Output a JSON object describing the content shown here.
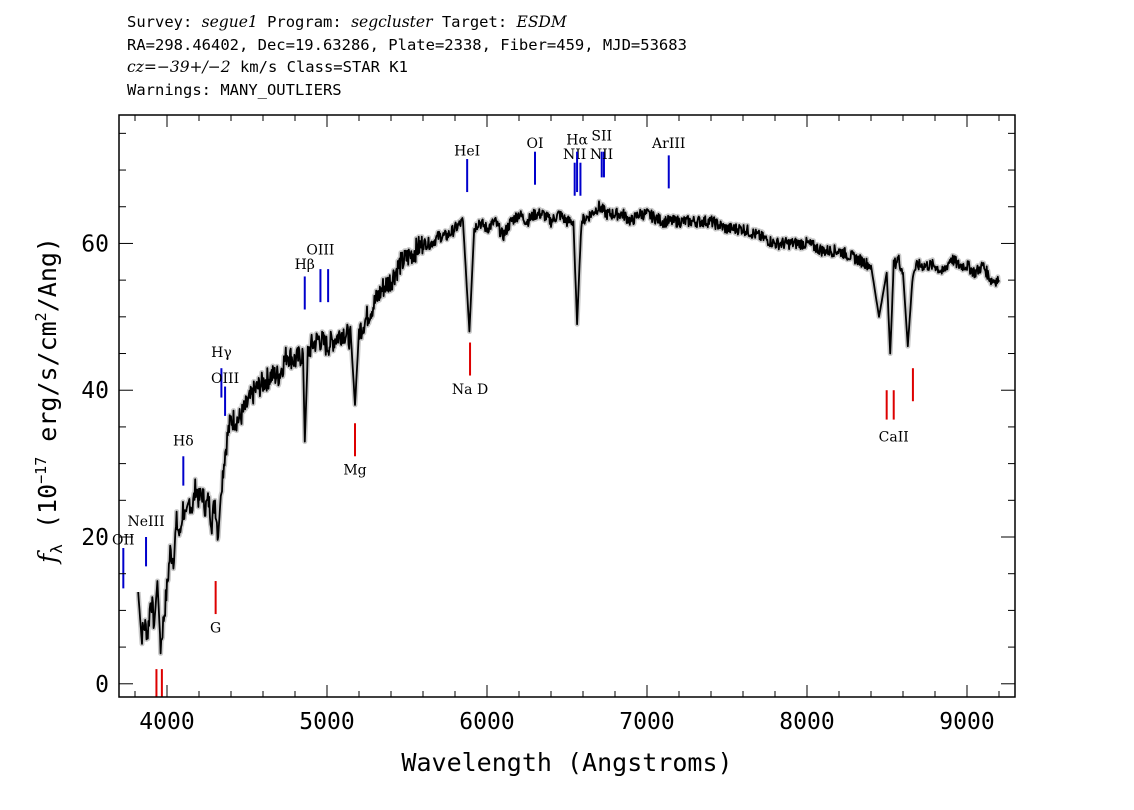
{
  "header": {
    "line1": {
      "survey_label": "Survey: ",
      "survey": "segue1",
      "program_label": " Program: ",
      "program": "segcluster",
      "target_label": " Target: ",
      "target": "ESDM"
    },
    "line2": "RA=298.46402, Dec=19.63286, Plate=2338, Fiber=459, MJD=53683",
    "line3": {
      "cz": "cz=",
      "value": "−39+/−2",
      "rest": " km/s Class=STAR K1"
    },
    "line4": "Warnings: MANY_OUTLIERS"
  },
  "chart_data": {
    "type": "line",
    "title": "",
    "xlabel": "Wavelength (Angstroms)",
    "ylabel": "f_λ (10^-17 erg/s/cm^2/Ang)",
    "ylabel_parts": {
      "f": "f",
      "sub": "λ",
      "a": "(10",
      "sup1": "−17",
      "b": " erg/s/cm",
      "sup2": "2",
      "c": "/Ang)"
    },
    "xlim": [
      3700,
      9300
    ],
    "ylim": [
      -1.8,
      77.5
    ],
    "x_ticks": [
      4000,
      5000,
      6000,
      7000,
      8000,
      9000
    ],
    "x_tick_labels": [
      "4000",
      "5000",
      "6000",
      "7000",
      "8000",
      "9000"
    ],
    "y_ticks": [
      0,
      20,
      40,
      60
    ],
    "y_tick_labels": [
      "0",
      "20",
      "40",
      "60"
    ],
    "series": [
      {
        "x": [
          3820,
          3840,
          3860,
          3880,
          3900,
          3920,
          3940,
          3960,
          3980,
          4000,
          4020,
          4040,
          4060,
          4080,
          4100,
          4120,
          4140,
          4160,
          4180,
          4200,
          4220,
          4240,
          4260,
          4280,
          4300,
          4320,
          4340,
          4360,
          4380,
          4400,
          4450,
          4500,
          4550,
          4600,
          4650,
          4700,
          4750,
          4800,
          4850,
          4861,
          4880,
          4900,
          4950,
          5000,
          5050,
          5100,
          5150,
          5175,
          5200,
          5250,
          5300,
          5350,
          5400,
          5450,
          5500,
          5550,
          5600,
          5650,
          5700,
          5750,
          5800,
          5850,
          5890,
          5920,
          5950,
          6000,
          6050,
          6100,
          6150,
          6200,
          6250,
          6300,
          6350,
          6400,
          6450,
          6500,
          6540,
          6563,
          6590,
          6650,
          6700,
          6750,
          6800,
          6850,
          6900,
          6950,
          7000,
          7100,
          7200,
          7300,
          7400,
          7500,
          7600,
          7700,
          7800,
          7900,
          8000,
          8100,
          8200,
          8300,
          8400,
          8450,
          8498,
          8520,
          8542,
          8570,
          8600,
          8630,
          8662,
          8690,
          8750,
          8800,
          8850,
          8900,
          8950,
          9000,
          9050,
          9100,
          9150,
          9200
        ],
        "y": [
          12.5,
          6.5,
          8,
          7,
          12,
          8,
          14,
          5,
          9,
          13,
          18,
          17,
          22,
          20,
          24,
          22,
          25,
          24,
          27,
          25,
          26,
          24,
          25,
          22,
          25,
          20,
          27,
          31,
          34,
          36,
          36,
          38,
          40,
          41,
          42,
          42,
          45,
          44,
          45,
          33,
          45,
          46,
          47,
          46,
          47,
          48,
          47,
          38,
          48,
          50,
          52,
          54,
          55,
          57,
          58,
          59,
          60,
          60,
          61,
          61,
          62,
          63,
          48,
          62,
          63,
          62,
          63,
          61,
          63,
          64,
          63,
          64,
          64,
          63,
          64,
          63,
          63,
          49,
          63,
          64,
          65,
          64,
          64,
          64,
          63,
          64,
          64,
          63,
          63,
          63,
          63,
          62,
          62,
          61,
          60,
          60,
          60,
          59,
          59,
          58,
          57,
          50,
          56,
          45,
          57,
          58,
          56,
          46,
          56,
          57,
          57,
          57,
          56,
          58,
          57,
          57,
          56,
          57,
          55,
          55
        ]
      }
    ],
    "line_markers": [
      {
        "label": "OII",
        "lambda": 3727,
        "kind": "emission",
        "color": "#0000cc",
        "y1": 13,
        "y2": 18.5,
        "label_y": 19
      },
      {
        "label": "NeIII",
        "lambda": 3869,
        "kind": "emission",
        "color": "#0000cc",
        "y1": 16,
        "y2": 20,
        "label_y": 21.5
      },
      {
        "label": "Hδ",
        "lambda": 4102,
        "kind": "emission",
        "color": "#0000cc",
        "y1": 27,
        "y2": 31,
        "label_y": 32.5
      },
      {
        "label": "Hγ",
        "lambda": 4340,
        "kind": "emission",
        "color": "#0000cc",
        "y1": 39,
        "y2": 43,
        "label_y": 44.5
      },
      {
        "label": "OIII",
        "lambda": 4363,
        "kind": "emission",
        "color": "#0000cc",
        "y1": 36.5,
        "y2": 40.5,
        "label_y": 41
      },
      {
        "label": "Hβ",
        "lambda": 4861,
        "kind": "emission",
        "color": "#0000cc",
        "y1": 51,
        "y2": 55.5,
        "label_y": 56.5
      },
      {
        "label": "OIII",
        "lambda": 4959,
        "kind": "emission",
        "color": "#0000cc",
        "y1": 52,
        "y2": 56.5,
        "label_y": 58.5
      },
      {
        "label": "",
        "lambda": 5007,
        "kind": "emission",
        "color": "#0000cc",
        "y1": 52,
        "y2": 56.5
      },
      {
        "label": "HeI",
        "lambda": 5876,
        "kind": "emission",
        "color": "#0000cc",
        "y1": 67,
        "y2": 71.5,
        "label_y": 72
      },
      {
        "label": "OI",
        "lambda": 6300,
        "kind": "emission",
        "color": "#0000cc",
        "y1": 68,
        "y2": 72.5,
        "label_y": 73
      },
      {
        "label": "NII",
        "lambda": 6548,
        "kind": "emission",
        "color": "#0000cc",
        "y1": 66.5,
        "y2": 71,
        "label_y": 71.5
      },
      {
        "label": "Hα",
        "lambda": 6563,
        "kind": "emission",
        "color": "#0000cc",
        "y1": 67,
        "y2": 72.5,
        "label_y": 73.5
      },
      {
        "label": "",
        "lambda": 6584,
        "kind": "emission",
        "color": "#0000cc",
        "y1": 66.5,
        "y2": 71
      },
      {
        "label": "SII",
        "lambda": 6717,
        "kind": "emission",
        "color": "#0000cc",
        "y1": 69,
        "y2": 72.5,
        "label_y": 74
      },
      {
        "label": "",
        "lambda": 6731,
        "kind": "emission",
        "color": "#0000cc",
        "y1": 69,
        "y2": 72.5
      },
      {
        "label": "NII",
        "lambda": 6716,
        "kind": "emission_label",
        "label_y": 71.5
      },
      {
        "label": "ArIII",
        "lambda": 7136,
        "kind": "emission",
        "color": "#0000cc",
        "y1": 67.5,
        "y2": 72,
        "label_y": 73
      },
      {
        "label": "",
        "lambda": 3934,
        "kind": "absorption",
        "color": "#dd0000",
        "y1": -1.8,
        "y2": 2
      },
      {
        "label": "",
        "lambda": 3968,
        "kind": "absorption",
        "color": "#dd0000",
        "y1": -1.8,
        "y2": 2
      },
      {
        "label": "G",
        "lambda": 4304,
        "kind": "absorption",
        "color": "#dd0000",
        "y1": 9.5,
        "y2": 14,
        "label_y": 7
      },
      {
        "label": "Mg",
        "lambda": 5175,
        "kind": "absorption",
        "color": "#dd0000",
        "y1": 31,
        "y2": 35.5,
        "label_y": 28.5
      },
      {
        "label": "Na D",
        "lambda": 5894,
        "kind": "absorption",
        "color": "#dd0000",
        "y1": 42,
        "y2": 46.5,
        "label_y": 39.5
      },
      {
        "label": "CaII",
        "lambda": 8542,
        "kind": "absorption",
        "color": "#dd0000",
        "y1": 36,
        "y2": 40,
        "label_y": 33
      },
      {
        "label": "",
        "lambda": 8498,
        "kind": "absorption",
        "color": "#dd0000",
        "y1": 36,
        "y2": 40
      },
      {
        "label": "",
        "lambda": 8662,
        "kind": "absorption",
        "color": "#dd0000",
        "y1": 38.5,
        "y2": 43
      }
    ],
    "colors": {
      "spectrum": "#000000",
      "error": "#bbbbbb",
      "emission": "#0000cc",
      "absorption": "#dd0000"
    },
    "grid": false,
    "legend": "none"
  }
}
